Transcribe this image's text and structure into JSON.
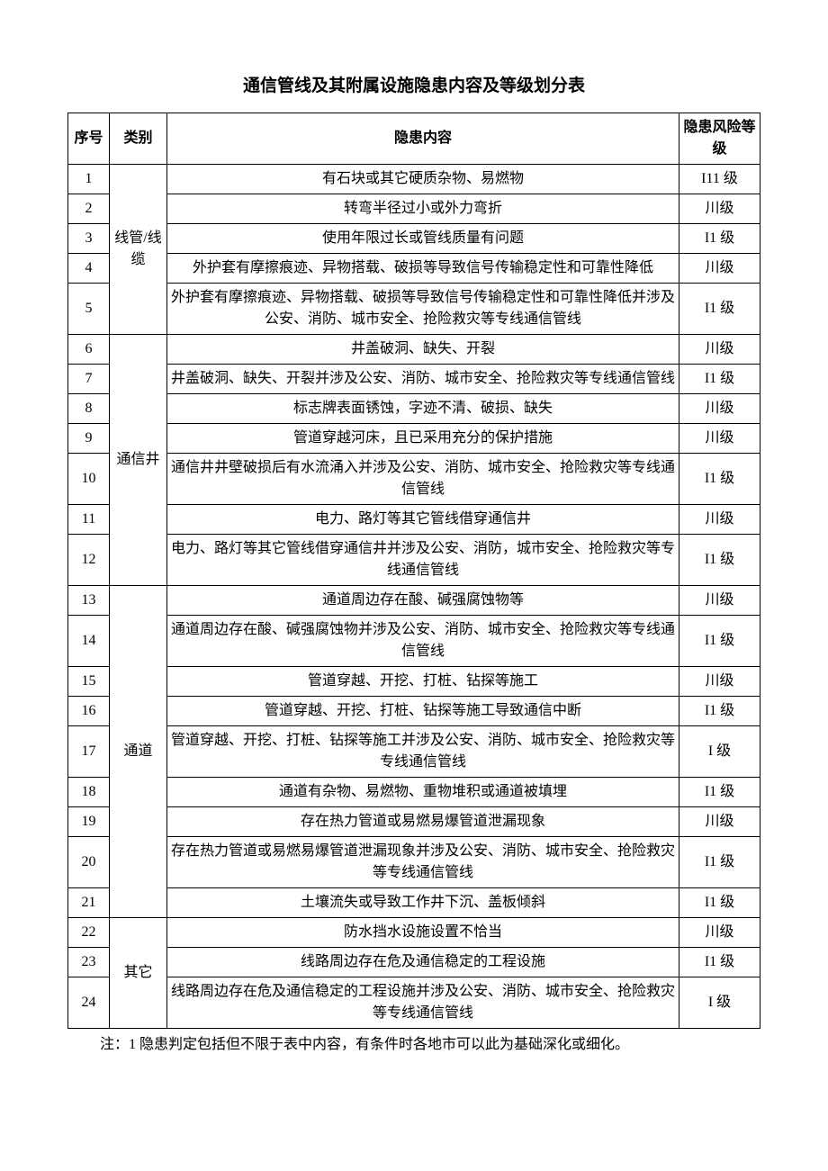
{
  "title": "通信管线及其附属设施隐患内容及等级划分表",
  "headers": {
    "index": "序号",
    "category": "类别",
    "content": "隐患内容",
    "level": "隐患风险等级"
  },
  "categories": {
    "cat1": "线管/线缆",
    "cat2": "通信井",
    "cat3": "通道",
    "cat4": "其它"
  },
  "rows": [
    {
      "index": "1",
      "content": "有石块或其它硬质杂物、易燃物",
      "level": "I11 级"
    },
    {
      "index": "2",
      "content": "转弯半径过小或外力弯折",
      "level": "川级"
    },
    {
      "index": "3",
      "content": "使用年限过长或管线质量有问题",
      "level": "I1 级"
    },
    {
      "index": "4",
      "content": "外护套有摩擦痕迹、异物搭载、破损等导致信号传输稳定性和可靠性降低",
      "level": "川级"
    },
    {
      "index": "5",
      "content": "外护套有摩擦痕迹、异物搭载、破损等导致信号传输稳定性和可靠性降低并涉及公安、消防、城市安全、抢险救灾等专线通信管线",
      "level": "I1 级"
    },
    {
      "index": "6",
      "content": "井盖破洞、缺失、开裂",
      "level": "川级"
    },
    {
      "index": "7",
      "content": "井盖破洞、缺失、开裂并涉及公安、消防、城市安全、抢险救灾等专线通信管线",
      "level": "I1 级"
    },
    {
      "index": "8",
      "content": "标志牌表面锈蚀，字迹不清、破损、缺失",
      "level": "川级"
    },
    {
      "index": "9",
      "content": "管道穿越河床，且已采用充分的保护措施",
      "level": "川级"
    },
    {
      "index": "10",
      "content": "通信井井壁破损后有水流涌入并涉及公安、消防、城市安全、抢险救灾等专线通信管线",
      "level": "I1 级"
    },
    {
      "index": "11",
      "content": "电力、路灯等其它管线借穿通信井",
      "level": "川级"
    },
    {
      "index": "12",
      "content": "电力、路灯等其它管线借穿通信井并涉及公安、消防，城市安全、抢险救灾等专线通信管线",
      "level": "I1 级"
    },
    {
      "index": "13",
      "content": "通道周边存在酸、碱强腐蚀物等",
      "level": "川级"
    },
    {
      "index": "14",
      "content": "通道周边存在酸、碱强腐蚀物并涉及公安、消防、城市安全、抢险救灾等专线通信管线",
      "level": "I1 级"
    },
    {
      "index": "15",
      "content": "管道穿越、开挖、打桩、钻探等施工",
      "level": "川级"
    },
    {
      "index": "16",
      "content": "管道穿越、开挖、打桩、钻探等施工导致通信中断",
      "level": "I1 级"
    },
    {
      "index": "17",
      "content": "管道穿越、开挖、打桩、钻探等施工并涉及公安、消防、城市安全、抢险救灾等专线通信管线",
      "level": "I 级"
    },
    {
      "index": "18",
      "content": "通道有杂物、易燃物、重物堆积或通道被填埋",
      "level": "I1 级"
    },
    {
      "index": "19",
      "content": "存在热力管道或易燃易爆管道泄漏现象",
      "level": "川级"
    },
    {
      "index": "20",
      "content": "存在热力管道或易燃易爆管道泄漏现象并涉及公安、消防、城市安全、抢险救灾等专线通信管线",
      "level": "I1 级"
    },
    {
      "index": "21",
      "content": "土壤流失或导致工作井下沉、盖板倾斜",
      "level": "I1 级"
    },
    {
      "index": "22",
      "content": "防水挡水设施设置不恰当",
      "level": "川级"
    },
    {
      "index": "23",
      "content": "线路周边存在危及通信稳定的工程设施",
      "level": "I1 级"
    },
    {
      "index": "24",
      "content": "线路周边存在危及通信稳定的工程设施并涉及公安、消防、城市安全、抢险救灾等专线通信管线",
      "level": "I 级"
    }
  ],
  "footnote": "注：1 隐患判定包括但不限于表中内容，有条件时各地市可以此为基础深化或细化。",
  "styling": {
    "page_bg": "#ffffff",
    "text_color": "#000000",
    "border_color": "#000000",
    "title_fontsize": 19,
    "cell_fontsize": 16,
    "footnote_fontsize": 16,
    "col_widths": {
      "index": 46,
      "category": 64,
      "level": 90
    }
  }
}
